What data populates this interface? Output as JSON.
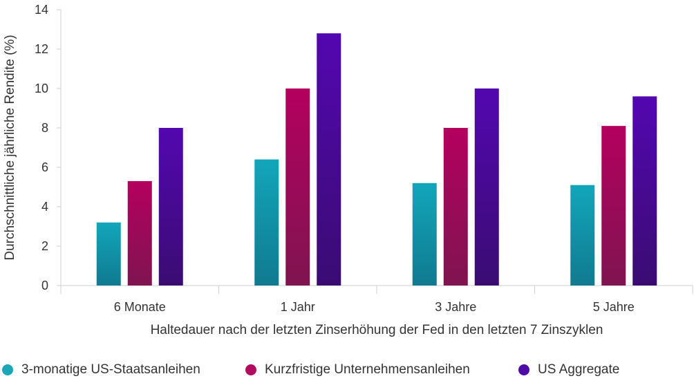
{
  "chart_data": {
    "type": "bar",
    "categories": [
      "6 Monate",
      "1 Jahr",
      "3 Jahre",
      "5 Jahre"
    ],
    "series": [
      {
        "name": "3-monatige US-Staatsanleihen",
        "values": [
          3.2,
          6.4,
          5.2,
          5.1
        ],
        "color_top": "#12a6bb",
        "color_bottom": "#107a90"
      },
      {
        "name": "Kurzfristige Unternehmensanleihen",
        "values": [
          5.3,
          10.0,
          8.0,
          8.1
        ],
        "color_top": "#b4005f",
        "color_bottom": "#7f1450"
      },
      {
        "name": "US Aggregate",
        "values": [
          8.0,
          12.8,
          10.0,
          9.6
        ],
        "color_top": "#5307b0",
        "color_bottom": "#3a0c72"
      }
    ],
    "ylim": [
      0,
      14
    ],
    "yticks": [
      0,
      2,
      4,
      6,
      8,
      10,
      12,
      14
    ],
    "ylabel": "Durchschnittliche jährliche Rendite (%)",
    "xlabel": "Haltedauer nach der letzten Zinserhöhung der Fed in den letzten 7 Zinszyklen",
    "grid": false,
    "legend_position": "bottom",
    "legend_colors": [
      "#1aa7b8",
      "#b10a5e",
      "#4f0ba8"
    ]
  }
}
